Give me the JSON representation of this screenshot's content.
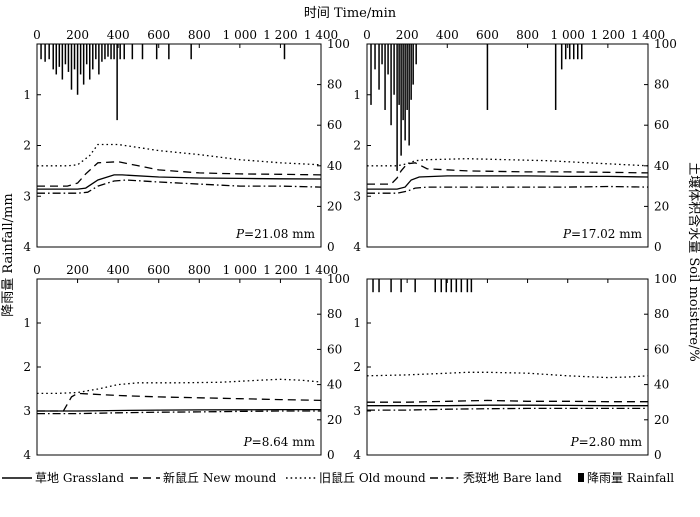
{
  "figure": {
    "title_top": "时间 Time/min",
    "ylabel_left": "降雨量 Rainfall/mm",
    "ylabel_right": "土壤体积含水量 Soil moisture/%"
  },
  "legend": [
    {
      "key": "grassland",
      "label": "草地 Grassland",
      "style": "solid"
    },
    {
      "key": "new_mound",
      "label": "新鼠丘 New mound",
      "style": "dashed"
    },
    {
      "key": "old_mound",
      "label": "旧鼠丘 Old mound",
      "style": "dotted"
    },
    {
      "key": "bare_land",
      "label": "秃斑地 Bare land",
      "style": "dashdot"
    },
    {
      "key": "rainfall",
      "label": "降雨量 Rainfall",
      "style": "bar"
    }
  ],
  "chart_data": [
    {
      "type": "line",
      "panel": "top-left",
      "annotation": "P=21.08 mm",
      "annotation_var": "P",
      "annotation_rest": "=21.08 mm",
      "x_range": [
        0,
        1400
      ],
      "x_ticks": [
        0,
        200,
        400,
        600,
        800,
        1000,
        1200,
        1400
      ],
      "x_tick_labels": [
        "0",
        "200",
        "400",
        "600",
        "800",
        "1 000",
        "1 200",
        "1 400"
      ],
      "rain_range": [
        0,
        4
      ],
      "rain_ticks": [
        "1",
        "2",
        "3",
        "4"
      ],
      "moisture_range": [
        0,
        100
      ],
      "moisture_ticks": [
        "0",
        "20",
        "40",
        "60",
        "80",
        "100"
      ],
      "rainfall": [
        [
          20,
          0.3
        ],
        [
          40,
          0.35
        ],
        [
          60,
          0.3
        ],
        [
          80,
          0.5
        ],
        [
          95,
          0.6
        ],
        [
          110,
          0.45
        ],
        [
          125,
          0.7
        ],
        [
          140,
          0.4
        ],
        [
          155,
          0.55
        ],
        [
          170,
          0.9
        ],
        [
          185,
          0.5
        ],
        [
          200,
          1.0
        ],
        [
          215,
          0.6
        ],
        [
          230,
          0.8
        ],
        [
          245,
          0.4
        ],
        [
          260,
          0.7
        ],
        [
          275,
          0.5
        ],
        [
          290,
          0.3
        ],
        [
          305,
          0.6
        ],
        [
          320,
          0.35
        ],
        [
          335,
          0.3
        ],
        [
          350,
          0.25
        ],
        [
          365,
          0.3
        ],
        [
          380,
          0.3
        ],
        [
          395,
          1.5
        ],
        [
          410,
          0.3
        ],
        [
          430,
          0.3
        ],
        [
          470,
          0.3
        ],
        [
          520,
          0.3
        ],
        [
          590,
          0.3
        ],
        [
          650,
          0.3
        ],
        [
          760,
          0.3
        ],
        [
          1220,
          0.3
        ]
      ],
      "series": [
        {
          "name": "草地 Grassland",
          "style": "solid",
          "x": [
            0,
            200,
            240,
            300,
            380,
            420,
            600,
            800,
            1000,
            1200,
            1400
          ],
          "y": [
            28.5,
            28.5,
            29,
            33,
            35.5,
            35.5,
            34.5,
            34,
            33.8,
            33.6,
            33.5
          ]
        },
        {
          "name": "新鼠丘 New mound",
          "style": "dashed",
          "x": [
            0,
            150,
            200,
            240,
            300,
            400,
            500,
            600,
            800,
            1000,
            1200,
            1400
          ],
          "y": [
            30,
            30,
            31.5,
            36,
            41.5,
            42,
            40,
            38,
            36.5,
            36,
            35.8,
            35.5
          ]
        },
        {
          "name": "旧鼠丘 Old mound",
          "style": "dotted",
          "x": [
            0,
            150,
            200,
            260,
            300,
            400,
            500,
            600,
            800,
            1000,
            1200,
            1400
          ],
          "y": [
            40,
            40,
            40.5,
            45,
            50.5,
            50.5,
            49,
            47.5,
            45.5,
            43,
            41.5,
            40.5
          ]
        },
        {
          "name": "秃斑地 Bare land",
          "style": "dashdot",
          "x": [
            0,
            200,
            250,
            300,
            380,
            440,
            600,
            800,
            1000,
            1200,
            1400
          ],
          "y": [
            26.5,
            26.5,
            27,
            30,
            32.5,
            33,
            32,
            31,
            30,
            30,
            29.5
          ]
        }
      ]
    },
    {
      "type": "line",
      "panel": "top-right",
      "annotation": "P=17.02 mm",
      "annotation_var": "P",
      "annotation_rest": "=17.02 mm",
      "x_range": [
        0,
        1400
      ],
      "x_ticks": [
        0,
        200,
        400,
        600,
        800,
        1000,
        1200,
        1400
      ],
      "x_tick_labels": [
        "0",
        "200",
        "400",
        "600",
        "800",
        "1 000",
        "1 200",
        "1 400"
      ],
      "rain_range": [
        0,
        4
      ],
      "rain_ticks": [
        "1",
        "2",
        "3",
        "4"
      ],
      "moisture_range": [
        0,
        100
      ],
      "moisture_ticks": [
        "0",
        "20",
        "40",
        "60",
        "80",
        "100"
      ],
      "rainfall": [
        [
          20,
          1.2
        ],
        [
          40,
          0.5
        ],
        [
          60,
          0.9
        ],
        [
          75,
          0.4
        ],
        [
          90,
          1.3
        ],
        [
          105,
          0.6
        ],
        [
          120,
          1.6
        ],
        [
          135,
          1.0
        ],
        [
          150,
          2.5
        ],
        [
          160,
          1.2
        ],
        [
          170,
          2.2
        ],
        [
          180,
          1.5
        ],
        [
          190,
          1.9
        ],
        [
          200,
          1.3
        ],
        [
          210,
          2.0
        ],
        [
          220,
          1.1
        ],
        [
          230,
          0.8
        ],
        [
          245,
          0.4
        ],
        [
          600,
          1.3
        ],
        [
          940,
          1.3
        ],
        [
          970,
          0.5
        ],
        [
          990,
          0.3
        ],
        [
          1010,
          0.3
        ],
        [
          1030,
          0.3
        ],
        [
          1050,
          0.3
        ],
        [
          1070,
          0.3
        ]
      ],
      "series": [
        {
          "name": "草地 Grassland",
          "style": "solid",
          "x": [
            0,
            150,
            190,
            220,
            260,
            400,
            600,
            800,
            1000,
            1200,
            1400
          ],
          "y": [
            28.5,
            28.5,
            29.5,
            33,
            34.5,
            35,
            35,
            35,
            34.8,
            34.8,
            34.5
          ]
        },
        {
          "name": "新鼠丘 New mound",
          "style": "dashed",
          "x": [
            0,
            120,
            150,
            170,
            200,
            240,
            300,
            500,
            800,
            1000,
            1200,
            1400
          ],
          "y": [
            31,
            31,
            34,
            37.5,
            41,
            41.5,
            38.5,
            37.5,
            37,
            37,
            36.8,
            36.5
          ]
        },
        {
          "name": "旧鼠丘 Old mound",
          "style": "dotted",
          "x": [
            0,
            150,
            200,
            240,
            300,
            500,
            700,
            900,
            1100,
            1300,
            1400
          ],
          "y": [
            40,
            40,
            41,
            42.5,
            43,
            43.5,
            43,
            42.5,
            41.5,
            40.5,
            40
          ]
        },
        {
          "name": "秃斑地 Bare land",
          "style": "dashdot",
          "x": [
            0,
            150,
            200,
            240,
            300,
            500,
            800,
            1000,
            1200,
            1400
          ],
          "y": [
            26.5,
            26.5,
            27.5,
            29,
            29.5,
            29.5,
            29.5,
            29.5,
            29.8,
            29.5
          ]
        }
      ]
    },
    {
      "type": "line",
      "panel": "bottom-left",
      "annotation": "P=8.64 mm",
      "annotation_var": "P",
      "annotation_rest": "=8.64 mm",
      "x_range": [
        0,
        1400
      ],
      "x_ticks": [
        0,
        200,
        400,
        600,
        800,
        1000,
        1200,
        1400
      ],
      "x_tick_labels": [
        "0",
        "200",
        "400",
        "600",
        "800",
        "1 000",
        "1 200",
        "1 400"
      ],
      "rain_range": [
        0,
        4
      ],
      "rain_ticks": [
        "1",
        "2",
        "3",
        "4"
      ],
      "moisture_range": [
        0,
        100
      ],
      "moisture_ticks": [
        "0",
        "20",
        "40",
        "60",
        "80",
        "100"
      ],
      "rainfall": [],
      "series": [
        {
          "name": "草地 Grassland",
          "style": "solid",
          "x": [
            0,
            200,
            400,
            600,
            800,
            1000,
            1200,
            1400
          ],
          "y": [
            25,
            25,
            25.3,
            25.5,
            25.6,
            25.7,
            25.8,
            25.8
          ]
        },
        {
          "name": "新鼠丘 New mound",
          "style": "dashed",
          "x": [
            0,
            130,
            150,
            170,
            200,
            400,
            600,
            800,
            1000,
            1200,
            1400
          ],
          "y": [
            25,
            25,
            29,
            33,
            35,
            33.8,
            33,
            32.5,
            32,
            31.5,
            31
          ]
        },
        {
          "name": "旧鼠丘 Old mound",
          "style": "dotted",
          "x": [
            0,
            100,
            200,
            300,
            400,
            500,
            700,
            900,
            1100,
            1200,
            1300,
            1400
          ],
          "y": [
            35,
            35,
            35.5,
            37.5,
            40,
            41,
            41,
            41.3,
            42.5,
            43,
            42.5,
            41.5
          ]
        },
        {
          "name": "秃斑地 Bare land",
          "style": "dashdot",
          "x": [
            0,
            200,
            400,
            600,
            800,
            1000,
            1200,
            1400
          ],
          "y": [
            23.5,
            23.5,
            24,
            24.3,
            24.5,
            24.8,
            25,
            25
          ]
        }
      ]
    },
    {
      "type": "line",
      "panel": "bottom-right",
      "annotation": "P=2.80 mm",
      "annotation_var": "P",
      "annotation_rest": "=2.80 mm",
      "x_range": [
        0,
        1400
      ],
      "x_ticks": [
        0,
        200,
        400,
        600,
        800,
        1000,
        1200,
        1400
      ],
      "x_tick_labels": [
        "0",
        "200",
        "400",
        "600",
        "800",
        "1 000",
        "1 200",
        "1 400"
      ],
      "rain_range": [
        0,
        4
      ],
      "rain_ticks": [
        "1",
        "2",
        "3",
        "4"
      ],
      "moisture_range": [
        0,
        100
      ],
      "moisture_ticks": [
        "0",
        "20",
        "40",
        "60",
        "80",
        "100"
      ],
      "rainfall": [
        [
          30,
          0.3
        ],
        [
          60,
          0.3
        ],
        [
          120,
          0.3
        ],
        [
          170,
          0.3
        ],
        [
          240,
          0.3
        ],
        [
          340,
          0.3
        ],
        [
          370,
          0.3
        ],
        [
          395,
          0.3
        ],
        [
          420,
          0.3
        ],
        [
          445,
          0.3
        ],
        [
          470,
          0.3
        ],
        [
          500,
          0.3
        ],
        [
          520,
          0.3
        ]
      ],
      "series": [
        {
          "name": "草地 Grassland",
          "style": "solid",
          "x": [
            0,
            200,
            400,
            600,
            800,
            1000,
            1200,
            1400
          ],
          "y": [
            28,
            28,
            28,
            28.3,
            28.3,
            28.2,
            28,
            28
          ]
        },
        {
          "name": "新鼠丘 New mound",
          "style": "dashed",
          "x": [
            0,
            200,
            400,
            600,
            800,
            1000,
            1200,
            1400
          ],
          "y": [
            30,
            30,
            30.5,
            31,
            30.5,
            30.5,
            30.3,
            30.3
          ]
        },
        {
          "name": "旧鼠丘 Old mound",
          "style": "dotted",
          "x": [
            0,
            200,
            400,
            500,
            600,
            800,
            1000,
            1200,
            1300,
            1400
          ],
          "y": [
            45,
            45.5,
            46.5,
            47,
            47,
            46.5,
            45,
            44,
            44.3,
            45
          ]
        },
        {
          "name": "秃斑地 Bare land",
          "style": "dashdot",
          "x": [
            0,
            200,
            400,
            600,
            800,
            1000,
            1200,
            1400
          ],
          "y": [
            25.5,
            25.5,
            26,
            26.3,
            26.5,
            26.5,
            26.5,
            26.5
          ]
        }
      ]
    }
  ]
}
